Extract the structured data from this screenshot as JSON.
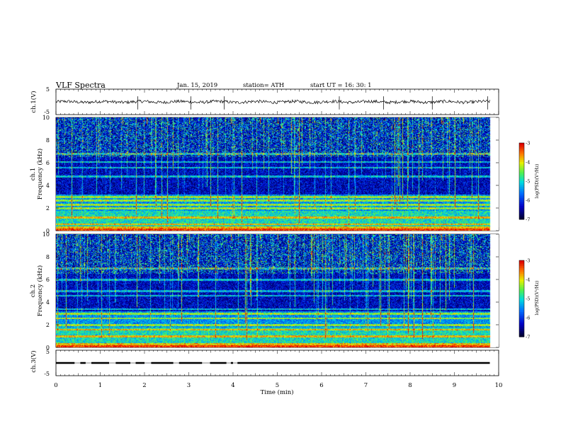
{
  "header": {
    "title": "VLF  Spectra",
    "date": "Jan. 15, 2019",
    "station": "station= ATH",
    "start": "start  UT  =    16: 30: 1"
  },
  "chart_data": [
    {
      "id": "ch1-waveform",
      "type": "line",
      "ylabel": "ch.1(V)",
      "ylim": [
        -5,
        5
      ],
      "ytick_labels": [
        "5",
        "-5"
      ],
      "xlim": [
        0,
        9.8
      ],
      "baseline": 0,
      "noise_amplitude": 0.6,
      "spike_times": [
        1.85,
        3.05,
        3.8,
        6.4,
        7.4,
        8.5,
        9.75
      ],
      "color": "#000000"
    },
    {
      "id": "ch1-spectrogram",
      "type": "heatmap",
      "ylabel": "ch.1",
      "ylabel2": "Frequency  (kHz)",
      "ylim": [
        0,
        10
      ],
      "xlim": [
        0,
        9.8
      ],
      "ytick_labels": [
        "0",
        "2",
        "4",
        "6",
        "8",
        "10"
      ],
      "colorbar": {
        "label": "log(PSD)(V²/Hz)",
        "ticks": [
          "-3",
          "-4",
          "-5",
          "-6",
          "-7"
        ],
        "range": [
          -7,
          -3
        ]
      },
      "bands_khz": [
        0.3,
        0.6,
        1.2,
        2.0,
        2.3,
        2.7,
        3.0,
        4.8,
        5.6,
        6.1,
        6.8
      ],
      "strong_lines_at_min": [
        1.5,
        2.05,
        3.0,
        3.95,
        4.6,
        5.0,
        8.7,
        9.2
      ]
    },
    {
      "id": "ch2-spectrogram",
      "type": "heatmap",
      "ylabel": "ch.2",
      "ylabel2": "Frequency  (kHz)",
      "ylim": [
        0,
        10
      ],
      "xlim": [
        0,
        9.8
      ],
      "ytick_labels": [
        "0",
        "2",
        "4",
        "6",
        "8",
        "10"
      ],
      "colorbar": {
        "label": "log(PSD)(V²/Hz)",
        "ticks": [
          "-3",
          "-4",
          "-5",
          "-6",
          "-7"
        ],
        "range": [
          -7,
          -3
        ]
      },
      "bands_khz": [
        0.3,
        1.0,
        1.6,
        2.0,
        2.6,
        3.0,
        3.4,
        4.6,
        5.0,
        6.0,
        7.0
      ],
      "strong_lines_at_min": [
        1.5,
        2.05,
        3.0,
        3.95,
        4.6,
        5.0,
        8.7,
        9.2
      ]
    },
    {
      "id": "ch3-waveform",
      "type": "line",
      "ylabel": "ch.3(V)",
      "ylim": [
        -5,
        5
      ],
      "ytick_labels": [
        "5",
        "-5"
      ],
      "xlim": [
        0,
        9.8
      ],
      "baseline": 0,
      "pulse_segments_min": [
        [
          0.0,
          0.42
        ],
        [
          0.55,
          0.67
        ],
        [
          0.8,
          1.2
        ],
        [
          1.35,
          1.68
        ],
        [
          1.8,
          2.0
        ],
        [
          2.15,
          2.65
        ],
        [
          2.78,
          3.3
        ],
        [
          3.48,
          3.85
        ],
        [
          3.95,
          4.0
        ],
        [
          4.1,
          9.8
        ]
      ],
      "color": "#000000"
    }
  ],
  "xaxis": {
    "label": "Time  (min)",
    "xlim": [
      0,
      10
    ],
    "tick_labels": [
      "0",
      "1",
      "2",
      "3",
      "4",
      "5",
      "6",
      "7",
      "8",
      "9",
      "10"
    ]
  }
}
